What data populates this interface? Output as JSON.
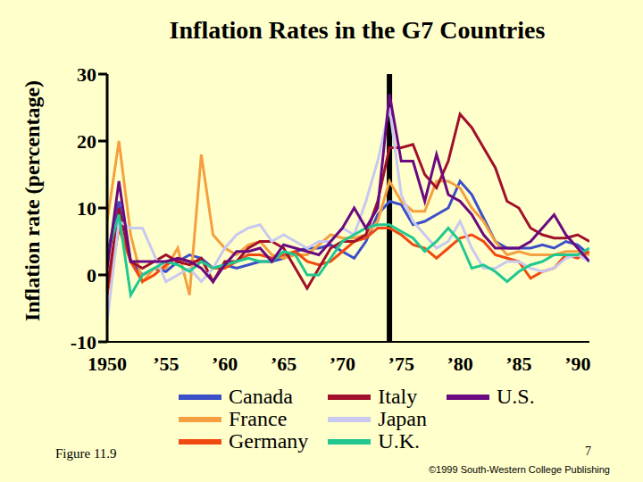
{
  "chart_data": {
    "type": "line",
    "title": "Inflation Rates in the G7 Countries",
    "y_label": "Inflation rate (percentage)",
    "annotations": [
      "Figure 11.9",
      "7",
      "©1999 South-Western College Publishing"
    ],
    "x": [
      1950,
      1951,
      1952,
      1953,
      1954,
      1955,
      1956,
      1957,
      1958,
      1959,
      1960,
      1961,
      1962,
      1963,
      1964,
      1965,
      1966,
      1967,
      1968,
      1969,
      1970,
      1971,
      1972,
      1973,
      1974,
      1975,
      1976,
      1977,
      1978,
      1979,
      1980,
      1981,
      1982,
      1983,
      1984,
      1985,
      1986,
      1987,
      1988,
      1989,
      1990,
      1991
    ],
    "xlim": [
      1950,
      1991
    ],
    "xticks": [
      {
        "value": 1950,
        "label": "1950"
      },
      {
        "value": 1955,
        "label": "’55"
      },
      {
        "value": 1960,
        "label": "’60"
      },
      {
        "value": 1965,
        "label": "’65"
      },
      {
        "value": 1970,
        "label": "’70"
      },
      {
        "value": 1975,
        "label": "’75"
      },
      {
        "value": 1980,
        "label": "’80"
      },
      {
        "value": 1985,
        "label": "’85"
      },
      {
        "value": 1990,
        "label": "’90"
      }
    ],
    "ylim": [
      -10,
      30
    ],
    "yticks": [
      -10,
      0,
      10,
      20,
      30
    ],
    "reference_line": 1974,
    "grid": false,
    "series": [
      {
        "name": "Canada",
        "color": "#3a4fc8",
        "values": [
          3,
          11,
          2,
          0,
          1,
          0.5,
          2,
          3,
          2.5,
          1,
          1.5,
          1,
          1.5,
          2,
          2,
          2.5,
          3.5,
          4,
          4,
          4.5,
          3.5,
          2.5,
          5,
          9,
          11,
          10.5,
          7.5,
          8,
          9,
          10,
          14,
          12,
          8.5,
          5,
          4,
          4,
          4,
          4.5,
          4,
          5,
          4.5,
          3
        ]
      },
      {
        "name": "France",
        "color": "#f5a040",
        "values": [
          8,
          20,
          6,
          -1,
          1,
          1,
          4,
          -3,
          18,
          6,
          4,
          3,
          4.5,
          5,
          3,
          2.5,
          3,
          3,
          4.5,
          6,
          5.5,
          5.5,
          6,
          8,
          14,
          11,
          9.5,
          9.5,
          14,
          14,
          13,
          10,
          8,
          5,
          3,
          3.5,
          3,
          3,
          3,
          3.5,
          3.5,
          3
        ]
      },
      {
        "name": "Germany",
        "color": "#f04a10",
        "values": [
          -3,
          7,
          2,
          -1,
          0,
          1.5,
          2.5,
          2,
          2,
          1,
          1,
          2,
          3,
          3,
          2.5,
          3,
          3.5,
          2,
          1.5,
          2,
          3.5,
          5,
          5.5,
          7,
          7,
          6,
          4.5,
          4,
          2.5,
          4,
          5.5,
          6,
          5,
          3,
          2.5,
          2,
          -0.5,
          0.5,
          1,
          3,
          2.5,
          3.5
        ]
      },
      {
        "name": "Italy",
        "color": "#a0102a",
        "values": [
          -2,
          10,
          2,
          1,
          2,
          3,
          2,
          1.5,
          2.5,
          -1,
          2,
          2,
          4,
          5,
          5,
          4,
          1,
          -2,
          1,
          4,
          5,
          5,
          6,
          11,
          19,
          19,
          19.5,
          15,
          13,
          17,
          24,
          22,
          19,
          16,
          11,
          10,
          7,
          6,
          5.5,
          5.5,
          6,
          5
        ]
      },
      {
        "name": "Japan",
        "color": "#c8c8f0",
        "values": [
          -7,
          8,
          7,
          7,
          3,
          -1,
          0,
          1,
          -1,
          1,
          4,
          6,
          7,
          7.5,
          5,
          6,
          5,
          4,
          5,
          5,
          7,
          6,
          11,
          17,
          25,
          12,
          8,
          6,
          4,
          5,
          8,
          4,
          1,
          1,
          2,
          2,
          1,
          0.5,
          1,
          2.5,
          3,
          2
        ]
      },
      {
        "name": "U.K.",
        "color": "#20c890",
        "values": [
          3,
          9,
          -3,
          0,
          1,
          2,
          1.5,
          0.5,
          2,
          1,
          1.5,
          2,
          2.5,
          2,
          2,
          3.5,
          3,
          0,
          0,
          2.5,
          5,
          6,
          7,
          7.5,
          7.5,
          6.5,
          5.5,
          3.5,
          5,
          7,
          5,
          1,
          1.5,
          0.5,
          -1,
          0.5,
          1.5,
          2,
          3,
          3,
          3,
          4
        ]
      },
      {
        "name": "U.S.",
        "color": "#6a0a80",
        "values": [
          1,
          14,
          2,
          2,
          2,
          2,
          2.5,
          2,
          1,
          -1,
          1.5,
          3.5,
          3.5,
          4,
          2,
          4.5,
          4,
          3.5,
          3,
          5,
          7,
          10,
          7,
          10,
          27,
          17,
          17,
          11,
          18,
          12,
          11,
          9,
          6,
          4,
          4,
          4,
          5,
          7,
          9,
          6,
          4,
          2
        ]
      }
    ]
  }
}
